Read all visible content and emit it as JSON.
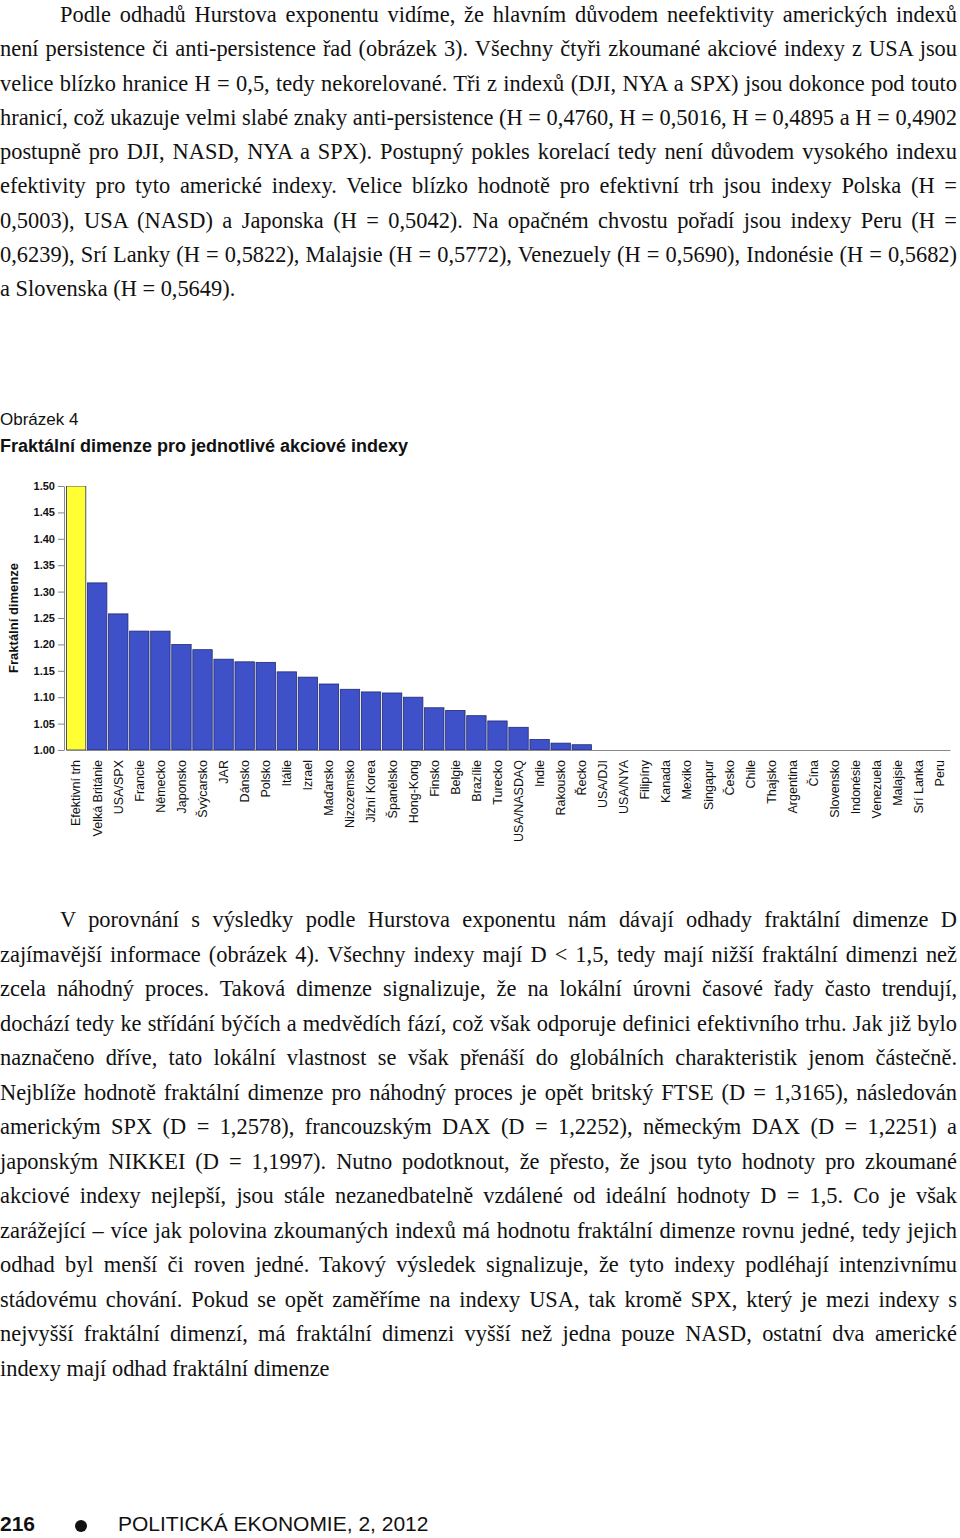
{
  "paragraphs": [
    "Podle odhadů Hurstova exponentu vidíme, že hlavním důvodem neefektivity amerických indexů není persistence či anti-persistence řad (obrázek 3). Všechny čtyři zkoumané akciové indexy z USA jsou velice blízko hranice H = 0,5, tedy nekorelované. Tři z indexů (DJI, NYA a SPX) jsou dokonce pod touto hranicí, což ukazuje velmi slabé znaky anti-persistence (H = 0,4760, H = 0,5016, H = 0,4895 a H = 0,4902 postupně pro DJI, NASD, NYA a SPX). Postupný pokles korelací tedy není důvodem vysokého indexu efektivity pro tyto americké indexy. Velice blízko hodnotě pro efektivní trh jsou indexy Polska (H = 0,5003), USA (NASD) a Japonska (H = 0,5042). Na opačném chvostu pořadí jsou indexy Peru (H = 0,6239), Srí Lanky (H = 0,5822), Malajsie (H = 0,5772), Venezuely (H = 0,5690), Indonésie (H = 0,5682) a Slovenska (H = 0,5649).",
    "V porovnání s výsledky podle Hurstova exponentu nám dávají odhady fraktální dimenze D zajímavější informace (obrázek 4). Všechny indexy mají D < 1,5, tedy mají nižší fraktální dimenzi než zcela náhodný proces. Taková dimenze signalizuje, že na lokální úrovni časové řady často trendují, dochází tedy ke střídání býčích a medvědích fází, což však odporuje definici efektivního trhu. Jak již bylo naznačeno dříve, tato lokální vlastnost se však přenáší do globálních charakteristik jenom částečně. Nejblíže hodnotě fraktální dimenze pro náhodný proces je opět britský FTSE (D = 1,3165), následován americkým SPX (D = 1,2578), francouzským DAX (D = 1,2252), německým DAX (D = 1,2251) a japonským NIKKEI (D = 1,1997). Nutno podotknout, že přesto, že jsou tyto hodnoty pro zkoumané akciové indexy nejlepší, jsou stále nezanedbatelně vzdálené od ideální hodnoty D = 1,5. Co je však zarážející – více jak polovina zkoumaných indexů má hodnotu fraktální dimenze rovnu jedné, tedy jejich odhad byl menší či roven jedné. Takový výsledek signalizuje, že tyto indexy podléhají intenzivnímu stádovému chování. Pokud se opět zaměříme na indexy USA, tak kromě SPX, který je mezi indexy s nejvyšší fraktální dimenzí, má fraktální dimenzi vyšší než jedna pouze NASD, ostatní dva americké indexy mají odhad fraktální dimenze"
  ],
  "figure_label": "Obrázek 4",
  "footer": {
    "page": "216",
    "journal": "POLITICKÁ EKONOMIE, 2, 2012"
  },
  "chart_data": {
    "type": "bar",
    "title": "Fraktální dimenze pro jednotlivé akciové indexy",
    "y_label": "Fraktální dimenze",
    "categories": [
      "Efektivní trh",
      "Velká Británie",
      "USA/SPX",
      "Francie",
      "Německo",
      "Japonsko",
      "Švýcarsko",
      "JAR",
      "Dánsko",
      "Polsko",
      "Itálie",
      "Izrael",
      "Maďarsko",
      "Nizozemsko",
      "Jižní Korea",
      "Španělsko",
      "Hong-Kong",
      "Finsko",
      "Belgie",
      "Brazílie",
      "Turecko",
      "USA/NASDAQ",
      "Indie",
      "Rakousko",
      "Řecko",
      "USA/DJI",
      "USA/NYA",
      "Filipíny",
      "Kanada",
      "Mexiko",
      "Singapur",
      "Česko",
      "Chile",
      "Thajsko",
      "Argentina",
      "Čína",
      "Slovensko",
      "Indonésie",
      "Venezuela",
      "Malajsie",
      "Srí Lanka",
      "Peru"
    ],
    "values": [
      1.5,
      1.3165,
      1.2578,
      1.2252,
      1.2251,
      1.1997,
      1.19,
      1.172,
      1.167,
      1.166,
      1.148,
      1.138,
      1.125,
      1.115,
      1.11,
      1.108,
      1.1,
      1.08,
      1.075,
      1.065,
      1.055,
      1.043,
      1.02,
      1.013,
      1.01,
      1.0,
      1.0,
      1.0,
      1.0,
      1.0,
      1.0,
      1.0,
      1.0,
      1.0,
      1.0,
      1.0,
      1.0,
      1.0,
      1.0,
      1.0,
      1.0,
      1.0
    ],
    "colors": [
      "#ffff33",
      "#3f51c8",
      "#3f51c8",
      "#3f51c8",
      "#3f51c8",
      "#3f51c8",
      "#3f51c8",
      "#3f51c8",
      "#3f51c8",
      "#3f51c8",
      "#3f51c8",
      "#3f51c8",
      "#3f51c8",
      "#3f51c8",
      "#3f51c8",
      "#3f51c8",
      "#3f51c8",
      "#3f51c8",
      "#3f51c8",
      "#3f51c8",
      "#3f51c8",
      "#3f51c8",
      "#3f51c8",
      "#3f51c8",
      "#3f51c8",
      "#3f51c8",
      "#3f51c8",
      "#3f51c8",
      "#3f51c8",
      "#3f51c8",
      "#3f51c8",
      "#3f51c8",
      "#3f51c8",
      "#3f51c8",
      "#3f51c8",
      "#3f51c8",
      "#3f51c8",
      "#3f51c8",
      "#3f51c8",
      "#3f51c8",
      "#3f51c8",
      "#3f51c8"
    ],
    "ylim": [
      1.0,
      1.5
    ],
    "yticks": [
      {
        "value": 1.0,
        "label": "1.00"
      },
      {
        "value": 1.05,
        "label": "1.05"
      },
      {
        "value": 1.1,
        "label": "1.10"
      },
      {
        "value": 1.15,
        "label": "1.15"
      },
      {
        "value": 1.2,
        "label": "1.20"
      },
      {
        "value": 1.25,
        "label": "1.25"
      },
      {
        "value": 1.3,
        "label": "1.30"
      },
      {
        "value": 1.35,
        "label": "1.35"
      },
      {
        "value": 1.4,
        "label": "1.40"
      },
      {
        "value": 1.45,
        "label": "1.45"
      },
      {
        "value": 1.5,
        "label": "1.50"
      }
    ],
    "grid": false
  }
}
